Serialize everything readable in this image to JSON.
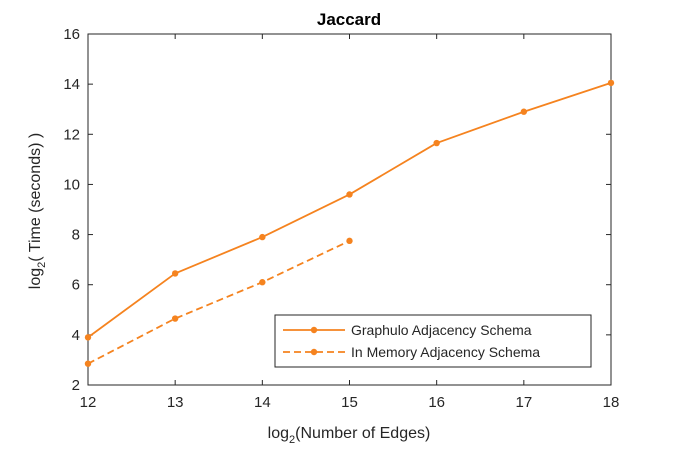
{
  "chart_data": {
    "type": "line",
    "title": "Jaccard",
    "xlabel": {
      "prefix": "log",
      "sub": "2",
      "suffix": "(Number of Edges)"
    },
    "ylabel": {
      "prefix": "log",
      "sub": "2",
      "suffix": "( Time (seconds) )"
    },
    "xlim": [
      12,
      18
    ],
    "ylim": [
      2,
      16
    ],
    "xticks": [
      12,
      13,
      14,
      15,
      16,
      17,
      18
    ],
    "yticks": [
      2,
      4,
      6,
      8,
      10,
      12,
      14,
      16
    ],
    "grid": false,
    "legend_position": "bottom-right",
    "series": [
      {
        "name": "Graphulo Adjacency Schema",
        "color": "#F5831F",
        "line_style": "solid",
        "x": [
          12,
          13,
          14,
          15,
          16,
          17,
          18
        ],
        "y": [
          3.9,
          6.45,
          7.9,
          9.6,
          11.65,
          12.9,
          14.05
        ]
      },
      {
        "name": "In Memory Adjacency Schema",
        "color": "#F5831F",
        "line_style": "dashed",
        "x": [
          12,
          13,
          14,
          15
        ],
        "y": [
          2.85,
          4.65,
          6.1,
          7.75
        ]
      }
    ]
  }
}
